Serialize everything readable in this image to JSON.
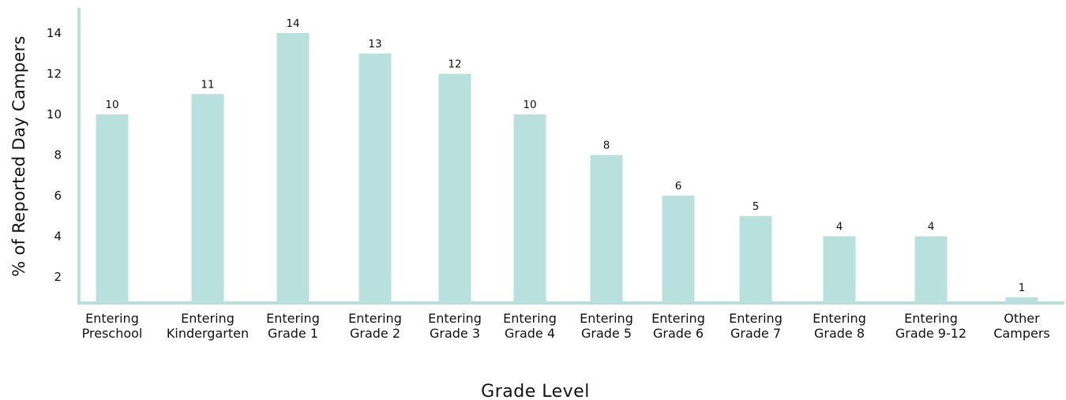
{
  "colors": {
    "bar": "#b8e0dd",
    "axis": "#b8e0dd"
  },
  "chart_data": {
    "type": "bar",
    "categories": [
      [
        "Entering",
        "Preschool"
      ],
      [
        "Entering",
        "Kindergarten"
      ],
      [
        "Entering",
        "Grade 1"
      ],
      [
        "Entering",
        "Grade 2"
      ],
      [
        "Entering",
        "Grade 3"
      ],
      [
        "Entering",
        "Grade 4"
      ],
      [
        "Entering",
        "Grade 5"
      ],
      [
        "Entering",
        "Grade 6"
      ],
      [
        "Entering",
        "Grade 7"
      ],
      [
        "Entering",
        "Grade 8"
      ],
      [
        "Entering",
        "Grade 9-12"
      ],
      [
        "Other",
        "Campers"
      ]
    ],
    "values": [
      10,
      11,
      14,
      13,
      12,
      10,
      8,
      6,
      5,
      4,
      4,
      1
    ],
    "value_labels": [
      "10",
      "11",
      "14",
      "13",
      "12",
      "10",
      "8",
      "6",
      "5",
      "4",
      "4",
      "1"
    ],
    "xlabel": "Grade Level",
    "ylabel": "% of Reported Day Campers",
    "yticks": [
      2,
      4,
      6,
      8,
      10,
      12,
      14
    ],
    "ylim": [
      0.5,
      15
    ],
    "grid": false,
    "legend": "none"
  }
}
